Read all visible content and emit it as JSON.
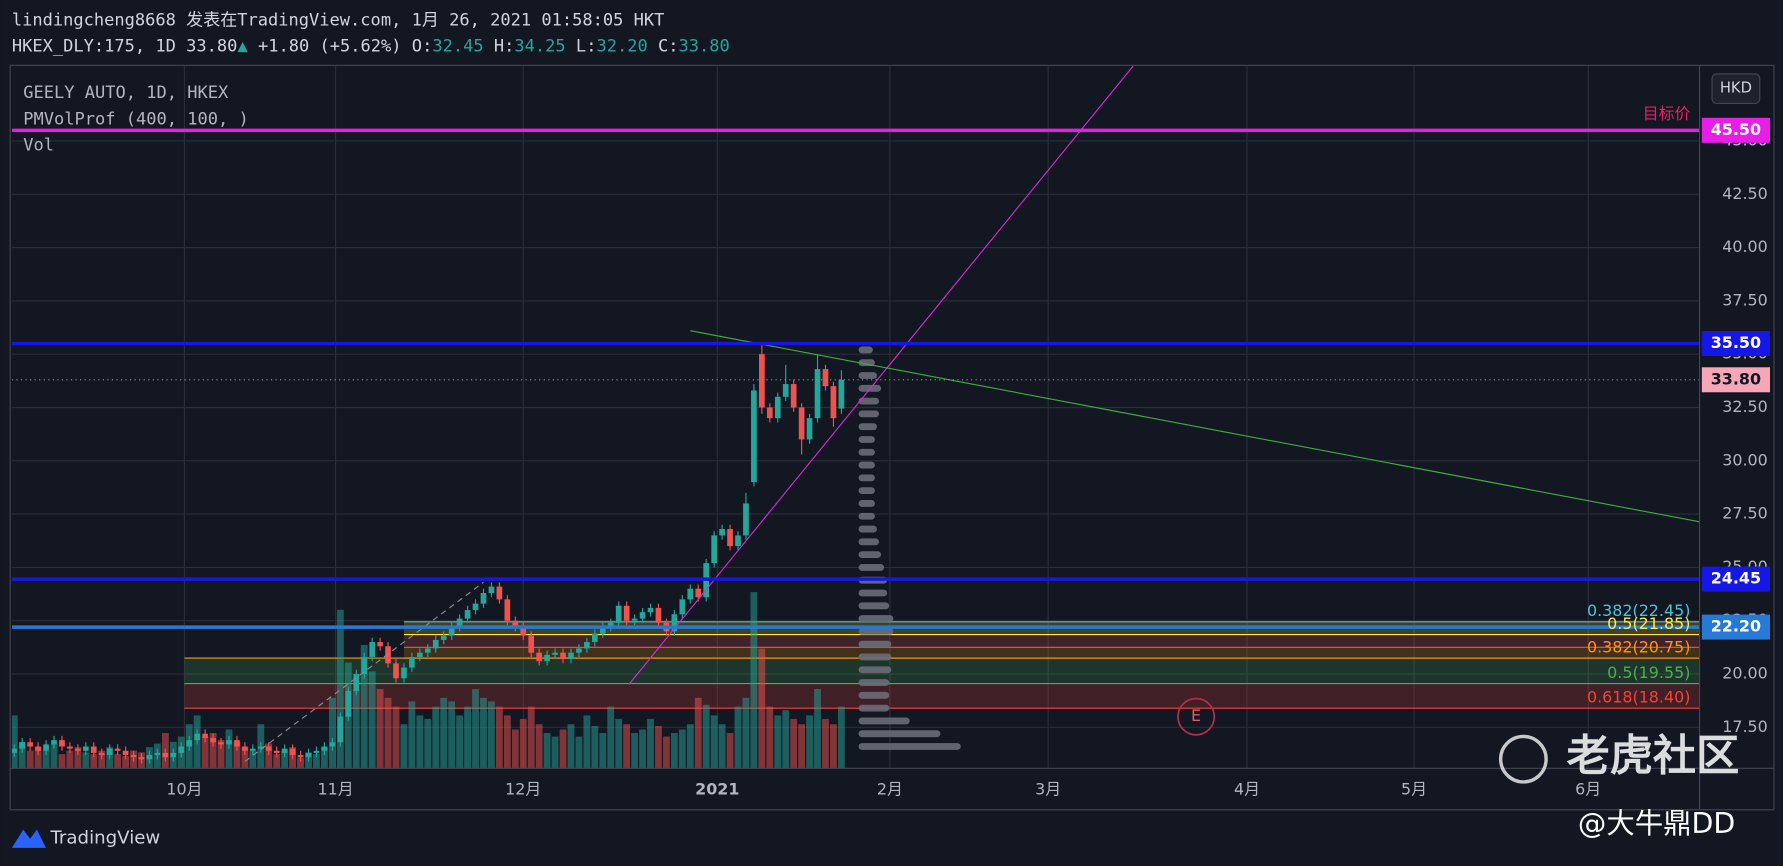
{
  "header": {
    "line1": "lindingcheng8668 发表在TradingView.com, 1月 26, 2021 01:58:05 HKT",
    "symbol": "HKEX_DLY:175, 1D 33.80",
    "arrow": "▲",
    "change": "+1.80 (+5.62%)",
    "ohlc": [
      {
        "label": "O:",
        "value": "32.45"
      },
      {
        "label": "H:",
        "value": "34.25"
      },
      {
        "label": "L:",
        "value": "32.20"
      },
      {
        "label": "C:",
        "value": "33.80"
      }
    ]
  },
  "currency_button": "HKD",
  "footer": {
    "brand": "TradingView",
    "watermark": "老虎社区",
    "author": "@大牛鼎DD"
  },
  "chart_data": {
    "type": "candlestick",
    "title": "GEELY AUTO, 1D, HKEX",
    "indicators": [
      "PMVolProf (400, 100, )",
      "Vol"
    ],
    "up_color": "#26a69a",
    "down_color": "#ef5350",
    "grid": true,
    "xlim": [
      -0.3,
      211.9
    ],
    "ylim": [
      15.58,
      48.52
    ],
    "vlim": [
      0,
      100
    ],
    "xticks": [
      {
        "value": 21.4,
        "label": "10月"
      },
      {
        "value": 40.4,
        "label": "11月"
      },
      {
        "value": 64,
        "label": "12月"
      },
      {
        "value": 88.4,
        "label": "2021"
      },
      {
        "value": 110.1,
        "label": "2月"
      },
      {
        "value": 130,
        "label": "3月"
      },
      {
        "value": 155,
        "label": "4月"
      },
      {
        "value": 176,
        "label": "5月"
      },
      {
        "value": 197.9,
        "label": "6月"
      }
    ],
    "yticks": [
      {
        "value": 17.5,
        "label": "17.50"
      },
      {
        "value": 20,
        "label": "20.00"
      },
      {
        "value": 22.5,
        "label": "22.50"
      },
      {
        "value": 25,
        "label": "25.00"
      },
      {
        "value": 27.5,
        "label": "27.50"
      },
      {
        "value": 30,
        "label": "30.00"
      },
      {
        "value": 32.5,
        "label": "32.50"
      },
      {
        "value": 35,
        "label": "35.00"
      },
      {
        "value": 37.5,
        "label": "37.50"
      },
      {
        "value": 40,
        "label": "40.00"
      },
      {
        "value": 42.5,
        "label": "42.50"
      },
      {
        "value": 45,
        "label": "45.00"
      }
    ],
    "open": [
      16.3,
      16.5,
      16.8,
      16.6,
      16.4,
      16.7,
      16.9,
      16.6,
      16.5,
      16.4,
      16.6,
      16.3,
      16.2,
      16.5,
      16.4,
      16.2,
      16.1,
      16.0,
      16.2,
      16.3,
      16.1,
      16.3,
      16.6,
      16.9,
      17.2,
      17.0,
      16.8,
      16.7,
      16.9,
      16.6,
      16.4,
      16.5,
      16.6,
      16.4,
      16.3,
      16.5,
      16.2,
      16.1,
      16.3,
      16.4,
      16.6,
      16.8,
      18.0,
      19.2,
      20.0,
      20.8,
      21.5,
      21.3,
      20.5,
      19.8,
      20.3,
      20.8,
      21.0,
      21.2,
      21.6,
      21.8,
      22.2,
      22.6,
      23.0,
      23.3,
      23.8,
      24.1,
      23.5,
      22.5,
      22.2,
      21.8,
      21.0,
      20.6,
      20.9,
      21.0,
      20.7,
      21.0,
      21.2,
      21.5,
      21.9,
      22.2,
      22.4,
      23.2,
      22.5,
      22.6,
      22.9,
      23.1,
      22.4,
      22.0,
      22.8,
      23.5,
      24.0,
      23.6,
      25.2,
      26.5,
      26.8,
      26.0,
      26.5,
      29.0,
      35.0,
      32.5,
      32.0,
      33.0,
      33.6,
      32.5,
      31.0,
      32.0,
      34.3,
      33.5,
      32.45
    ],
    "high": [
      16.7,
      17.0,
      17.0,
      16.8,
      16.9,
      17.1,
      17.1,
      16.8,
      16.7,
      16.8,
      16.8,
      16.5,
      16.7,
      16.7,
      16.6,
      16.4,
      16.3,
      16.4,
      16.5,
      16.5,
      16.5,
      16.8,
      17.1,
      17.4,
      17.4,
      17.2,
      17.0,
      17.1,
      17.1,
      16.8,
      16.7,
      16.8,
      16.8,
      16.6,
      16.7,
      16.7,
      16.4,
      16.5,
      16.6,
      16.8,
      17.0,
      18.2,
      19.4,
      20.2,
      21.0,
      21.7,
      21.7,
      21.5,
      20.7,
      20.5,
      21.0,
      21.2,
      21.4,
      21.8,
      22.0,
      22.4,
      22.8,
      23.2,
      23.5,
      24.0,
      24.3,
      24.3,
      23.7,
      22.7,
      22.4,
      22.0,
      21.2,
      21.1,
      21.2,
      21.2,
      21.2,
      21.4,
      21.7,
      22.1,
      22.4,
      22.6,
      23.4,
      23.4,
      22.8,
      23.1,
      23.3,
      23.3,
      22.6,
      23.0,
      23.7,
      24.2,
      24.2,
      25.4,
      26.7,
      27.0,
      27.0,
      26.7,
      28.5,
      33.6,
      35.5,
      32.7,
      33.2,
      34.5,
      33.8,
      32.7,
      32.2,
      35.0,
      34.5,
      33.7,
      34.25
    ],
    "low": [
      16.1,
      16.3,
      16.4,
      16.2,
      16.2,
      16.5,
      16.4,
      16.3,
      16.2,
      16.2,
      16.1,
      16.0,
      16.0,
      16.2,
      16.0,
      15.9,
      15.8,
      15.8,
      16.0,
      15.9,
      15.9,
      16.1,
      16.4,
      16.7,
      16.8,
      16.6,
      16.5,
      16.5,
      16.4,
      16.2,
      16.2,
      16.3,
      16.2,
      16.1,
      16.1,
      16.0,
      15.9,
      15.9,
      16.1,
      16.2,
      16.4,
      16.6,
      17.8,
      19.0,
      19.8,
      20.6,
      21.1,
      20.3,
      19.6,
      19.6,
      20.1,
      20.6,
      20.8,
      21.0,
      21.4,
      21.6,
      22.0,
      22.4,
      22.8,
      23.1,
      23.6,
      23.3,
      22.3,
      22.0,
      21.6,
      20.8,
      20.4,
      20.4,
      20.7,
      20.5,
      20.5,
      20.8,
      21.0,
      21.3,
      21.7,
      22.0,
      22.2,
      22.3,
      22.3,
      22.4,
      22.7,
      22.2,
      21.8,
      21.8,
      22.6,
      23.3,
      23.4,
      23.4,
      25.0,
      26.3,
      25.8,
      25.8,
      26.3,
      28.8,
      32.2,
      31.8,
      31.8,
      32.8,
      32.3,
      30.3,
      30.8,
      31.8,
      33.3,
      31.6,
      32.2
    ],
    "close": [
      16.5,
      16.8,
      16.6,
      16.4,
      16.7,
      16.9,
      16.6,
      16.5,
      16.4,
      16.6,
      16.3,
      16.2,
      16.5,
      16.4,
      16.2,
      16.1,
      16.0,
      16.2,
      16.3,
      16.1,
      16.3,
      16.6,
      16.9,
      17.2,
      17.0,
      16.8,
      16.7,
      16.9,
      16.6,
      16.4,
      16.5,
      16.6,
      16.4,
      16.3,
      16.5,
      16.2,
      16.1,
      16.3,
      16.4,
      16.6,
      16.8,
      18.0,
      19.2,
      20.0,
      20.8,
      21.5,
      21.3,
      20.5,
      19.8,
      20.3,
      20.8,
      21.0,
      21.2,
      21.6,
      21.8,
      22.2,
      22.6,
      23.0,
      23.3,
      23.8,
      24.1,
      23.5,
      22.5,
      22.2,
      21.8,
      21.0,
      20.6,
      20.9,
      21.0,
      20.7,
      21.0,
      21.2,
      21.5,
      21.9,
      22.2,
      22.4,
      23.2,
      22.5,
      22.6,
      22.9,
      23.1,
      22.4,
      22.0,
      22.8,
      23.5,
      24.0,
      23.6,
      25.2,
      26.5,
      26.8,
      26.0,
      26.5,
      28.0,
      33.3,
      32.5,
      32.0,
      33.0,
      33.6,
      32.5,
      31.0,
      32.0,
      34.3,
      33.5,
      32.0,
      33.8
    ],
    "volume": [
      30,
      15,
      10,
      12,
      10,
      14,
      8,
      10,
      12,
      9,
      8,
      10,
      12,
      8,
      7,
      10,
      9,
      12,
      14,
      20,
      15,
      18,
      25,
      30,
      18,
      20,
      16,
      22,
      15,
      12,
      10,
      25,
      14,
      8,
      10,
      12,
      6,
      9,
      8,
      12,
      40,
      90,
      60,
      45,
      70,
      55,
      45,
      40,
      35,
      25,
      38,
      30,
      28,
      35,
      40,
      38,
      30,
      35,
      45,
      40,
      38,
      35,
      30,
      22,
      28,
      35,
      25,
      20,
      18,
      22,
      25,
      18,
      30,
      24,
      20,
      35,
      28,
      25,
      20,
      22,
      28,
      24,
      18,
      20,
      22,
      25,
      40,
      36,
      30,
      25,
      20,
      35,
      40,
      100,
      68,
      35,
      30,
      33,
      28,
      25,
      30,
      45,
      28,
      25,
      35
    ],
    "volume_profile": {
      "color": "#6a6d78",
      "prices": [
        16.6,
        17.2,
        17.8,
        18.4,
        19.0,
        19.6,
        20.2,
        20.8,
        21.4,
        22.0,
        22.6,
        23.2,
        23.8,
        24.4,
        25.0,
        25.6,
        26.2,
        26.8,
        27.4,
        28.0,
        28.6,
        29.2,
        29.8,
        30.4,
        31.0,
        31.6,
        32.2,
        32.8,
        33.4,
        34.0,
        34.6,
        35.2
      ],
      "values": [
        100,
        80,
        50,
        30,
        30,
        30,
        32,
        32,
        32,
        34,
        34,
        30,
        28,
        28,
        25,
        22,
        20,
        18,
        16,
        16,
        16,
        16,
        16,
        16,
        16,
        18,
        20,
        20,
        22,
        18,
        16,
        14
      ]
    },
    "levels": [
      {
        "value": 45.5,
        "label": "45.50",
        "color": "#e81ee8",
        "note": "目标价"
      },
      {
        "value": 35.5,
        "label": "35.50",
        "color": "#1616e6"
      },
      {
        "value": 24.45,
        "label": "24.45",
        "color": "#1616e6"
      },
      {
        "value": 22.2,
        "label": "22.20",
        "color": "#2679d4"
      }
    ],
    "last_price": {
      "value": 33.8,
      "label": "33.80",
      "color": "#f7a6b8"
    },
    "fib_levels": [
      {
        "value": 22.45,
        "label": "0.382(22.45)",
        "color": "#4fc3d6",
        "start": 49
      },
      {
        "value": 21.85,
        "label": "0.5(21.85)",
        "color": "#ffeb3b",
        "start": 49
      },
      {
        "value": 21.25,
        "color": "#ef5350",
        "start": 49
      },
      {
        "value": 20.75,
        "label": "0.382(20.75)",
        "color": "#ff9800",
        "start": 49
      },
      {
        "value": 20.75,
        "color": "#ff9800",
        "start": 21.4
      },
      {
        "value": 19.55,
        "label": "0.5(19.55)",
        "color": "#4caf50",
        "start": 21.4
      },
      {
        "value": 18.4,
        "label": "0.618(18.40)",
        "color": "#f44336",
        "start": 21.4
      }
    ],
    "trendlines": [
      {
        "x": [
          77.3,
          140.7
        ],
        "y": [
          19.52,
          48.52
        ],
        "color": "#d42ad4",
        "dash": false
      },
      {
        "x": [
          85,
          211.9
        ],
        "y": [
          36.1,
          27.14
        ],
        "color": "#3fae3f",
        "dash": false
      },
      {
        "x": [
          29,
          59
        ],
        "y": [
          15.9,
          24.3
        ],
        "color": "#8a8d96",
        "dash": true
      }
    ],
    "events": [
      {
        "x": 148.6,
        "y": 18.0,
        "label": "E"
      }
    ]
  }
}
